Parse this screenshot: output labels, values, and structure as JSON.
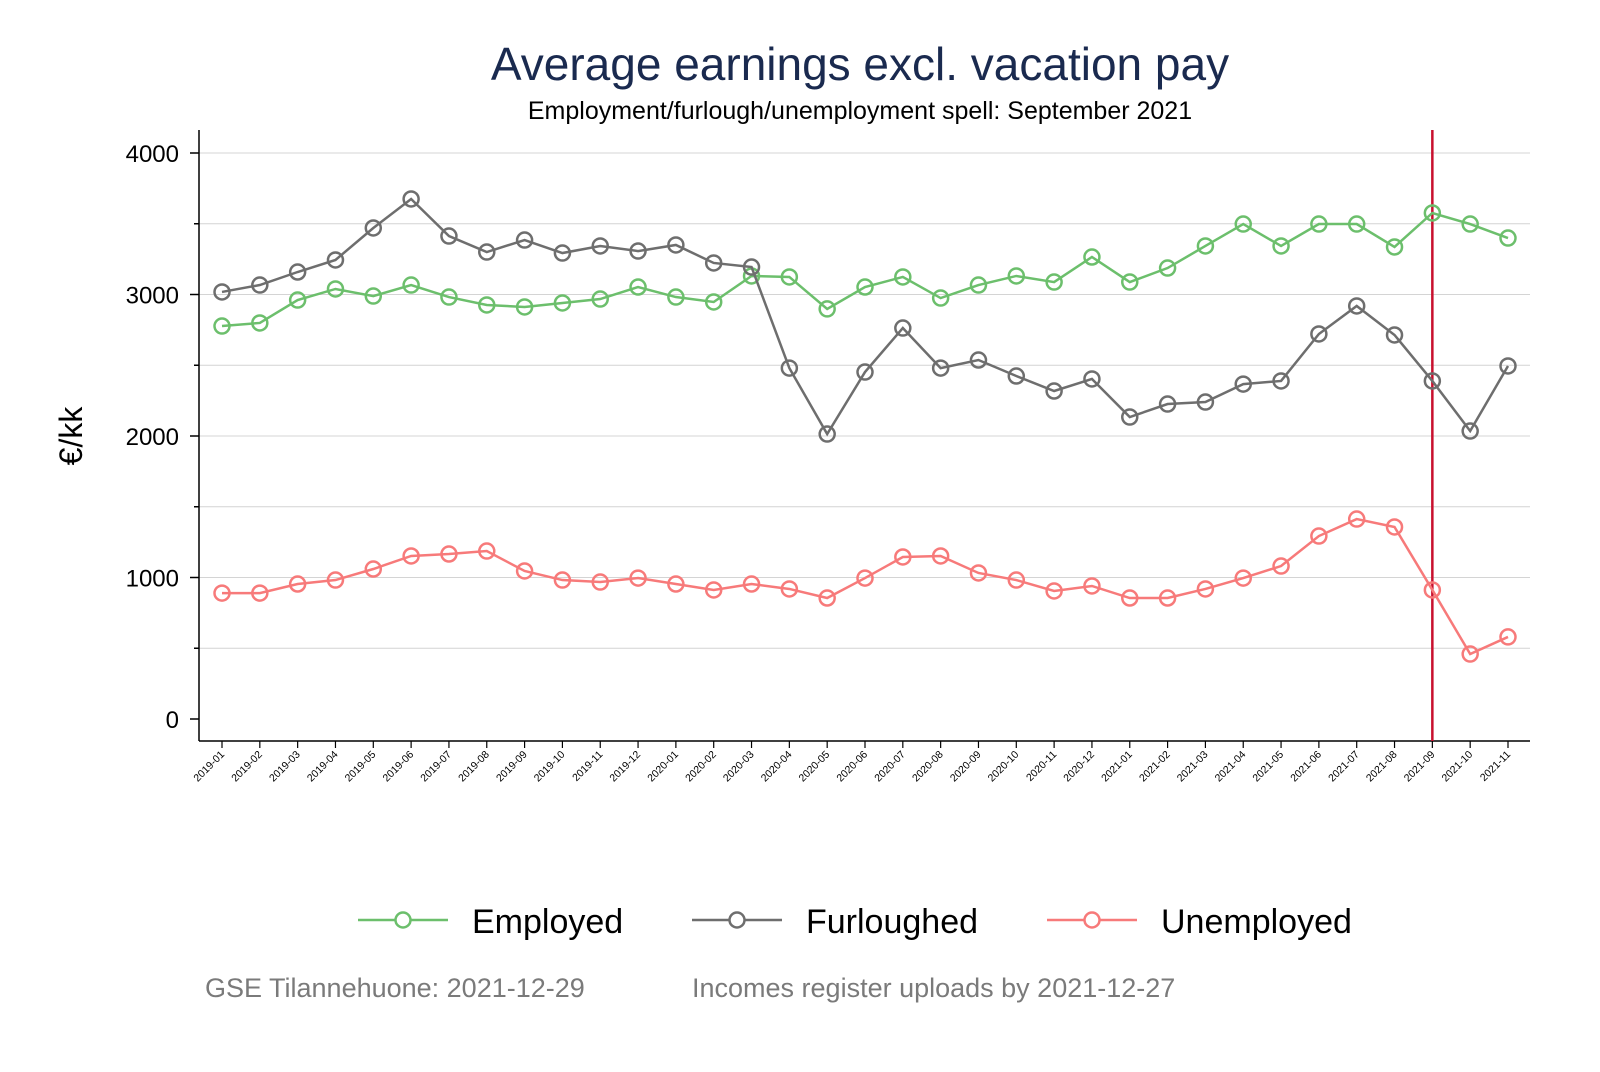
{
  "chart_data": {
    "type": "line",
    "title": "Average earnings excl. vacation pay",
    "subtitle": "Employment/furlough/unemployment spell: September 2021",
    "xlabel": "",
    "ylabel": "€/kk",
    "ylim": [
      -150,
      4160
    ],
    "yticks": [
      0,
      1000,
      2000,
      3000,
      4000
    ],
    "grid": true,
    "legend_placement": "bottom",
    "x": [
      "2019-01",
      "2019-02",
      "2019-03",
      "2019-04",
      "2019-05",
      "2019-06",
      "2019-07",
      "2019-08",
      "2019-09",
      "2019-10",
      "2019-11",
      "2019-12",
      "2020-01",
      "2020-02",
      "2020-03",
      "2020-04",
      "2020-05",
      "2020-06",
      "2020-07",
      "2020-08",
      "2020-09",
      "2020-10",
      "2020-11",
      "2020-12",
      "2021-01",
      "2021-02",
      "2021-03",
      "2021-04",
      "2021-05",
      "2021-06",
      "2021-07",
      "2021-08",
      "2021-09",
      "2021-10",
      "2021-11"
    ],
    "reference_line": {
      "x": "2021-09",
      "color": "#c8102e"
    },
    "series": [
      {
        "name": "Employed",
        "color": "#6cbf6c",
        "values": [
          2777,
          2799,
          2961,
          3039,
          2989,
          3067,
          2982,
          2926,
          2912,
          2940,
          2968,
          3053,
          2982,
          2947,
          3131,
          3124,
          2898,
          3053,
          3124,
          2975,
          3067,
          3131,
          3088,
          3265,
          3088,
          3187,
          3343,
          3498,
          3343,
          3498,
          3498,
          3336,
          3576,
          3498,
          3399
        ]
      },
      {
        "name": "Furloughed",
        "color": "#6e6e6e",
        "values": [
          3018,
          3067,
          3159,
          3244,
          3470,
          3675,
          3413,
          3300,
          3385,
          3293,
          3343,
          3307,
          3350,
          3223,
          3194,
          2480,
          2014,
          2452,
          2763,
          2480,
          2537,
          2424,
          2318,
          2403,
          2134,
          2226,
          2240,
          2367,
          2389,
          2721,
          2919,
          2714,
          2389,
          2035,
          2495
        ]
      },
      {
        "name": "Unemployed",
        "color": "#f77a7a",
        "values": [
          890,
          890,
          954,
          982,
          1060,
          1152,
          1166,
          1187,
          1046,
          982,
          968,
          996,
          954,
          912,
          954,
          919,
          855,
          996,
          1145,
          1152,
          1032,
          982,
          905,
          940,
          855,
          855,
          919,
          996,
          1081,
          1293,
          1413,
          1357,
          912,
          459,
          580
        ]
      }
    ]
  },
  "footer": {
    "source": "GSE Tilannehuone: 2021-12-29",
    "note": "Incomes register uploads by 2021-12-27"
  }
}
